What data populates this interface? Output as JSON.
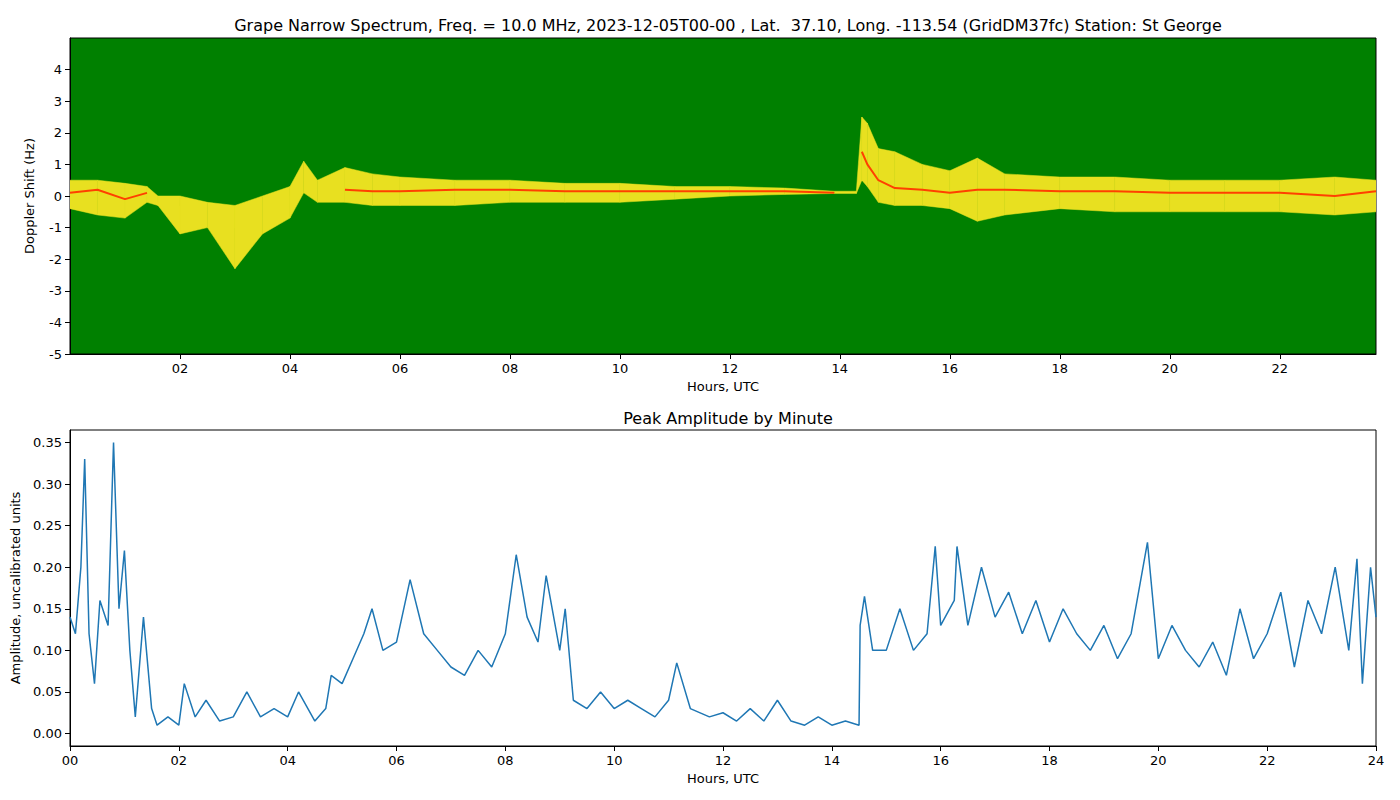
{
  "chart_data": [
    {
      "type": "spectrum",
      "title": "Grape Narrow Spectrum, Freq. = 10.0 MHz, 2023-12-05T00-00 , Lat.  37.10, Long. -113.54 (GridDM37fc) Station: St George",
      "xlabel": "Hours, UTC",
      "ylabel": "Doppler Shift (Hz)",
      "color": "#008000",
      "grid": false,
      "xlim": [
        0,
        23.75
      ],
      "xticks": [
        {
          "value": 2,
          "label": "02"
        },
        {
          "value": 4,
          "label": "04"
        },
        {
          "value": 6,
          "label": "06"
        },
        {
          "value": 8,
          "label": "08"
        },
        10,
        12,
        14,
        16,
        18,
        20,
        22
      ],
      "ylim": [
        -5,
        5
      ],
      "yticks": [
        -5,
        -4,
        -3,
        -2,
        -1,
        0,
        1,
        2,
        3,
        4
      ],
      "x": [
        0,
        0.5,
        1.0,
        1.4,
        1.6,
        2.0,
        2.5,
        3.0,
        3.5,
        4.0,
        4.25,
        4.5,
        5.0,
        5.5,
        6,
        7,
        8,
        9,
        10,
        11,
        12,
        13,
        13.9,
        14.3,
        14.4,
        14.5,
        14.7,
        15,
        15.5,
        16,
        16.5,
        17,
        18,
        19,
        20,
        21,
        22,
        23,
        23.75
      ],
      "series": [
        {
          "type": "band",
          "color": "#e8e020",
          "lower": [
            -0.4,
            -0.6,
            -0.7,
            -0.2,
            -0.3,
            -1.2,
            -1.0,
            -2.3,
            -1.2,
            -0.7,
            0.1,
            -0.2,
            -0.2,
            -0.3,
            -0.3,
            -0.3,
            -0.2,
            -0.2,
            -0.2,
            -0.1,
            0.0,
            0.05,
            0.08,
            0.08,
            0.5,
            0.3,
            -0.2,
            -0.3,
            -0.3,
            -0.4,
            -0.8,
            -0.6,
            -0.4,
            -0.5,
            -0.5,
            -0.5,
            -0.5,
            -0.6,
            -0.5
          ],
          "upper": [
            0.5,
            0.5,
            0.4,
            0.3,
            0.0,
            0.0,
            -0.2,
            -0.3,
            0.0,
            0.3,
            1.1,
            0.5,
            0.9,
            0.7,
            0.6,
            0.5,
            0.5,
            0.4,
            0.4,
            0.3,
            0.3,
            0.25,
            0.15,
            0.15,
            2.5,
            2.3,
            1.5,
            1.4,
            1.0,
            0.8,
            1.2,
            0.7,
            0.6,
            0.6,
            0.5,
            0.5,
            0.5,
            0.6,
            0.5
          ]
        },
        {
          "type": "line",
          "color": "#ff4000",
          "values": [
            0.1,
            0.2,
            -0.1,
            0.1,
            null,
            null,
            null,
            null,
            null,
            null,
            null,
            null,
            0.2,
            0.15,
            0.15,
            0.2,
            0.2,
            0.15,
            0.15,
            0.15,
            0.15,
            0.15,
            0.1,
            null,
            1.4,
            1.0,
            0.5,
            0.25,
            0.2,
            0.1,
            0.2,
            0.2,
            0.15,
            0.15,
            0.1,
            0.1,
            0.1,
            0.0,
            0.15
          ]
        }
      ]
    },
    {
      "type": "line",
      "title": "Peak Amplitude by Minute",
      "xlabel": "Hours, UTC",
      "ylabel": "Amplitude, uncalibrated units",
      "grid": false,
      "xlim": [
        0,
        24
      ],
      "xticks": [
        {
          "value": 0,
          "label": "00"
        },
        {
          "value": 2,
          "label": "02"
        },
        {
          "value": 4,
          "label": "04"
        },
        {
          "value": 6,
          "label": "06"
        },
        {
          "value": 8,
          "label": "08"
        },
        10,
        12,
        14,
        16,
        18,
        20,
        22,
        24
      ],
      "ylim": [
        -0.015,
        0.365
      ],
      "yticks": [
        {
          "value": 0,
          "label": "0.00"
        },
        {
          "value": 0.05,
          "label": "0.05"
        },
        {
          "value": 0.1,
          "label": "0.10"
        },
        {
          "value": 0.15,
          "label": "0.15"
        },
        {
          "value": 0.2,
          "label": "0.20"
        },
        {
          "value": 0.25,
          "label": "0.25"
        },
        {
          "value": 0.3,
          "label": "0.30"
        },
        {
          "value": 0.35,
          "label": "0.35"
        }
      ],
      "x": [
        0.0,
        0.1,
        0.2,
        0.27,
        0.35,
        0.45,
        0.55,
        0.7,
        0.8,
        0.9,
        1.0,
        1.1,
        1.2,
        1.35,
        1.5,
        1.6,
        1.8,
        2.0,
        2.1,
        2.3,
        2.5,
        2.75,
        3.0,
        3.25,
        3.5,
        3.75,
        4.0,
        4.2,
        4.5,
        4.7,
        4.8,
        5.0,
        5.2,
        5.4,
        5.55,
        5.75,
        6.0,
        6.25,
        6.5,
        6.75,
        7.0,
        7.25,
        7.5,
        7.75,
        8.0,
        8.2,
        8.4,
        8.6,
        8.75,
        9.0,
        9.1,
        9.25,
        9.5,
        9.75,
        10.0,
        10.25,
        10.5,
        10.75,
        11.0,
        11.15,
        11.4,
        11.75,
        12.0,
        12.25,
        12.5,
        12.75,
        13.0,
        13.25,
        13.5,
        13.75,
        14.0,
        14.25,
        14.5,
        14.52,
        14.6,
        14.75,
        15.0,
        15.25,
        15.5,
        15.75,
        15.9,
        16.0,
        16.25,
        16.3,
        16.5,
        16.75,
        17.0,
        17.25,
        17.5,
        17.75,
        18.0,
        18.25,
        18.5,
        18.75,
        19.0,
        19.25,
        19.5,
        19.8,
        20.0,
        20.25,
        20.5,
        20.75,
        21.0,
        21.25,
        21.5,
        21.75,
        22.0,
        22.25,
        22.5,
        22.75,
        23.0,
        23.25,
        23.5,
        23.65,
        23.75,
        23.9,
        24.0
      ],
      "series": [
        {
          "color": "#1f77b4",
          "values": [
            0.14,
            0.12,
            0.2,
            0.33,
            0.12,
            0.06,
            0.16,
            0.13,
            0.35,
            0.15,
            0.22,
            0.1,
            0.02,
            0.14,
            0.03,
            0.01,
            0.02,
            0.01,
            0.06,
            0.02,
            0.04,
            0.015,
            0.02,
            0.05,
            0.02,
            0.03,
            0.02,
            0.05,
            0.015,
            0.03,
            0.07,
            0.06,
            0.09,
            0.12,
            0.15,
            0.1,
            0.11,
            0.185,
            0.12,
            0.1,
            0.08,
            0.07,
            0.1,
            0.08,
            0.12,
            0.215,
            0.14,
            0.11,
            0.19,
            0.1,
            0.15,
            0.04,
            0.03,
            0.05,
            0.03,
            0.04,
            0.03,
            0.02,
            0.04,
            0.085,
            0.03,
            0.02,
            0.025,
            0.015,
            0.03,
            0.015,
            0.04,
            0.015,
            0.01,
            0.02,
            0.01,
            0.015,
            0.01,
            0.13,
            0.165,
            0.1,
            0.1,
            0.15,
            0.1,
            0.12,
            0.225,
            0.13,
            0.16,
            0.225,
            0.13,
            0.2,
            0.14,
            0.17,
            0.12,
            0.16,
            0.11,
            0.15,
            0.12,
            0.1,
            0.13,
            0.09,
            0.12,
            0.23,
            0.09,
            0.13,
            0.1,
            0.08,
            0.11,
            0.07,
            0.15,
            0.09,
            0.12,
            0.17,
            0.08,
            0.16,
            0.12,
            0.2,
            0.1,
            0.21,
            0.06,
            0.2,
            0.14
          ]
        }
      ]
    }
  ]
}
